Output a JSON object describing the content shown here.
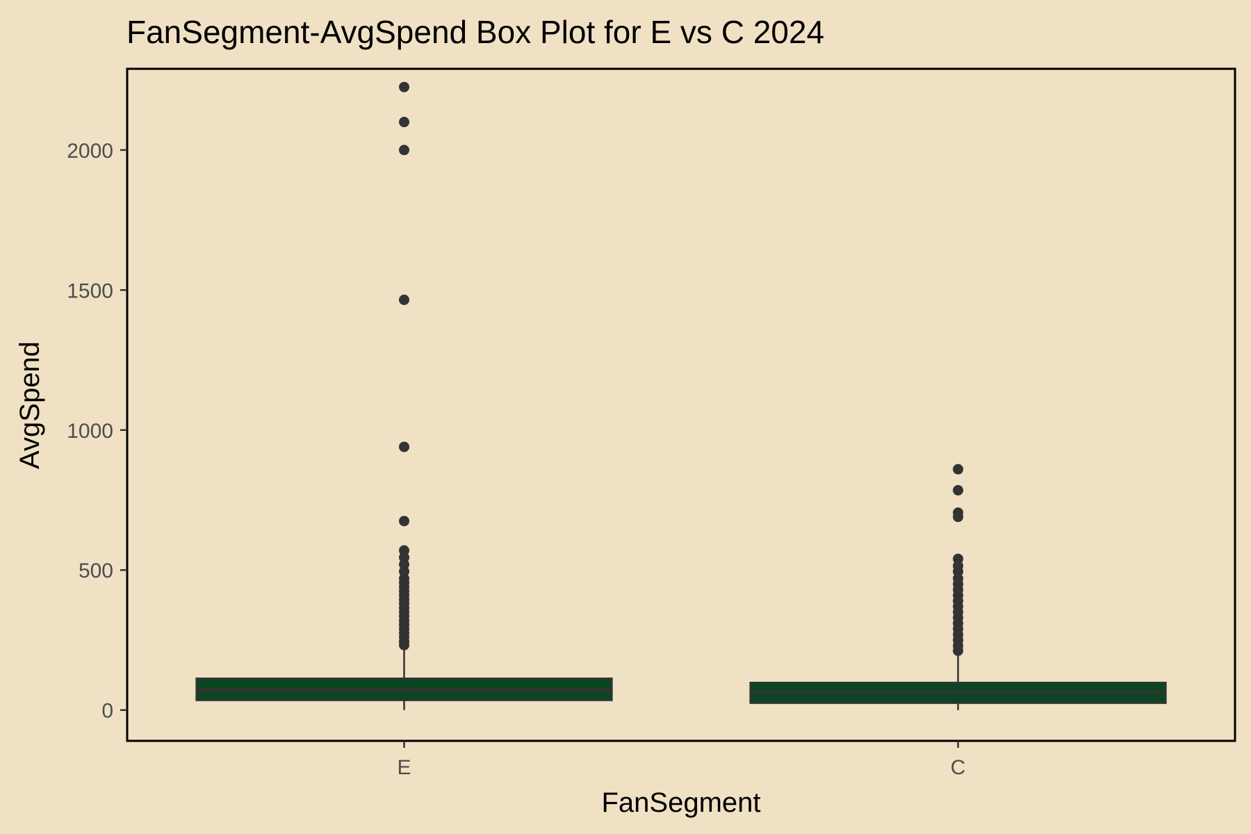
{
  "chart_data": {
    "type": "box",
    "title": "FanSegment-AvgSpend Box Plot for E vs C 2024",
    "xlabel": "FanSegment",
    "ylabel": "AvgSpend",
    "ylim": [
      -110,
      2290
    ],
    "yticks": [
      0,
      500,
      1000,
      1500,
      2000
    ],
    "grid": false,
    "categories": [
      "E",
      "C"
    ],
    "boxes": [
      {
        "category": "E",
        "min": 0,
        "q1": 35,
        "median": 72,
        "q3": 113,
        "whisker_high": 225,
        "outliers": [
          2225,
          2100,
          2000,
          1465,
          940,
          675,
          570,
          545,
          520,
          495,
          470,
          455,
          440,
          425,
          410,
          395,
          380,
          365,
          350,
          335,
          320,
          305,
          290,
          275,
          260,
          245,
          232
        ]
      },
      {
        "category": "C",
        "min": 0,
        "q1": 25,
        "median": 62,
        "q3": 98,
        "whisker_high": 205,
        "outliers": [
          860,
          785,
          705,
          690,
          540,
          515,
          495,
          470,
          450,
          430,
          410,
          390,
          370,
          350,
          330,
          310,
          290,
          270,
          250,
          230,
          212
        ]
      }
    ]
  },
  "colors": {
    "background": "#F0E1C5",
    "box_fill": "#0B4521",
    "box_line": "#333333",
    "points": "#333333",
    "panel_border": "#000000"
  }
}
